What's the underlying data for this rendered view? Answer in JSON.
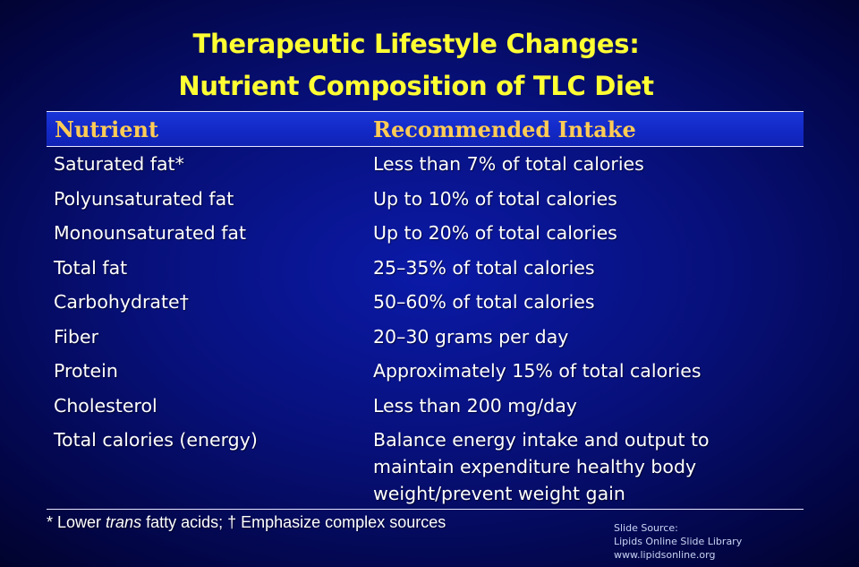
{
  "title": {
    "line1": "Therapeutic Lifestyle Changes:",
    "line2": "Nutrient Composition of TLC Diet"
  },
  "table": {
    "headers": [
      "Nutrient",
      "Recommended Intake"
    ],
    "rows": [
      [
        "Saturated fat*",
        "Less than 7% of total calories"
      ],
      [
        "Polyunsaturated fat",
        "Up to 10% of total calories"
      ],
      [
        "Monounsaturated fat",
        "Up to 20% of total calories"
      ],
      [
        "Total fat",
        "25–35% of total calories"
      ],
      [
        "Carbohydrate†",
        "50–60% of total calories"
      ],
      [
        "Fiber",
        "20–30 grams per day"
      ],
      [
        "Protein",
        "Approximately 15% of total calories"
      ],
      [
        "Cholesterol",
        "Less than 200 mg/day"
      ],
      [
        "Total calories (energy)",
        "Balance energy intake and output to maintain expenditure healthy body weight/prevent weight gain"
      ]
    ]
  },
  "footnote": {
    "prefix": "* Lower ",
    "italic": "trans",
    "suffix": " fatty acids; † Emphasize complex sources"
  },
  "source": {
    "line1": "Slide Source:",
    "line2": "Lipids Online Slide Library",
    "line3": "www.lipidsonline.org"
  },
  "colors": {
    "title": "#ffff33",
    "header_text": "#ffcc55",
    "header_band": "#1329c6",
    "background": "#07107a"
  }
}
